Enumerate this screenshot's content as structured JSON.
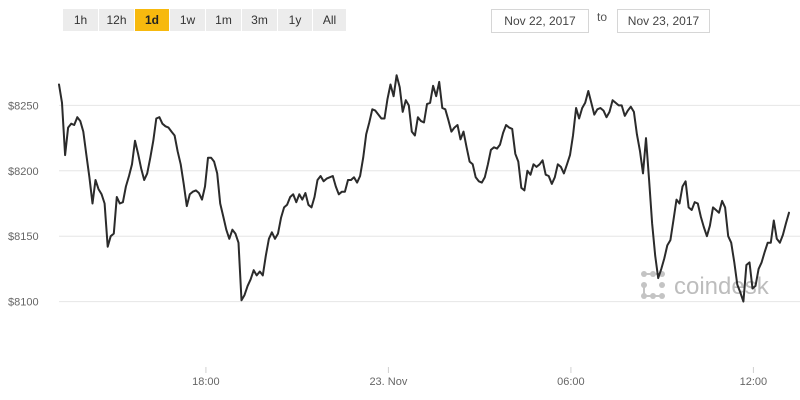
{
  "range_buttons": [
    {
      "label": "1h",
      "active": false
    },
    {
      "label": "12h",
      "active": false
    },
    {
      "label": "1d",
      "active": true
    },
    {
      "label": "1w",
      "active": false
    },
    {
      "label": "1m",
      "active": false
    },
    {
      "label": "3m",
      "active": false
    },
    {
      "label": "1y",
      "active": false
    },
    {
      "label": "All",
      "active": false
    }
  ],
  "date_range": {
    "from": "Nov 22, 2017",
    "separator": "to",
    "to": "Nov 23, 2017"
  },
  "watermark": {
    "text": "coindesk",
    "icon": "coindesk-logo-icon"
  },
  "colors": {
    "line": "#2b2b2b",
    "active_button": "#f7b90e",
    "grid": "#e6e6e6"
  },
  "chart_data": {
    "type": "line",
    "title": "",
    "xlabel": "",
    "ylabel": "",
    "x_unit": "hours since Nov 22, 2017 13:10",
    "xlim": [
      0,
      24
    ],
    "ylim": [
      8050,
      8300
    ],
    "y_ticks": [
      {
        "value": 8100,
        "label": "$8100"
      },
      {
        "value": 8150,
        "label": "$8150"
      },
      {
        "value": 8200,
        "label": "$8200"
      },
      {
        "value": 8250,
        "label": "$8250"
      }
    ],
    "x_ticks": [
      {
        "value": 4.83,
        "label": "18:00"
      },
      {
        "value": 10.83,
        "label": "23. Nov"
      },
      {
        "value": 16.83,
        "label": "06:00"
      },
      {
        "value": 22.83,
        "label": "12:00"
      }
    ],
    "grid": "horizontal",
    "legend": "none",
    "series": [
      {
        "values": [
          [
            0.0,
            8266
          ],
          [
            0.1,
            8252
          ],
          [
            0.2,
            8212
          ],
          [
            0.3,
            8233
          ],
          [
            0.4,
            8236
          ],
          [
            0.5,
            8235
          ],
          [
            0.6,
            8241
          ],
          [
            0.7,
            8238
          ],
          [
            0.8,
            8230
          ],
          [
            0.9,
            8212
          ],
          [
            1.0,
            8195
          ],
          [
            1.1,
            8175
          ],
          [
            1.2,
            8193
          ],
          [
            1.3,
            8186
          ],
          [
            1.4,
            8182
          ],
          [
            1.5,
            8175
          ],
          [
            1.6,
            8142
          ],
          [
            1.7,
            8150
          ],
          [
            1.8,
            8152
          ],
          [
            1.9,
            8180
          ],
          [
            2.0,
            8175
          ],
          [
            2.1,
            8176
          ],
          [
            2.2,
            8188
          ],
          [
            2.3,
            8196
          ],
          [
            2.4,
            8205
          ],
          [
            2.5,
            8223
          ],
          [
            2.6,
            8213
          ],
          [
            2.7,
            8202
          ],
          [
            2.8,
            8193
          ],
          [
            2.9,
            8198
          ],
          [
            3.0,
            8210
          ],
          [
            3.1,
            8223
          ],
          [
            3.2,
            8240
          ],
          [
            3.3,
            8241
          ],
          [
            3.4,
            8236
          ],
          [
            3.5,
            8234
          ],
          [
            3.6,
            8233
          ],
          [
            3.7,
            8230
          ],
          [
            3.8,
            8227
          ],
          [
            3.9,
            8215
          ],
          [
            4.0,
            8205
          ],
          [
            4.1,
            8190
          ],
          [
            4.2,
            8173
          ],
          [
            4.3,
            8182
          ],
          [
            4.4,
            8184
          ],
          [
            4.5,
            8185
          ],
          [
            4.6,
            8183
          ],
          [
            4.7,
            8178
          ],
          [
            4.8,
            8188
          ],
          [
            4.9,
            8210
          ],
          [
            5.0,
            8210
          ],
          [
            5.1,
            8207
          ],
          [
            5.2,
            8198
          ],
          [
            5.3,
            8175
          ],
          [
            5.4,
            8165
          ],
          [
            5.5,
            8155
          ],
          [
            5.6,
            8148
          ],
          [
            5.7,
            8155
          ],
          [
            5.8,
            8152
          ],
          [
            5.9,
            8145
          ],
          [
            6.0,
            8101
          ],
          [
            6.1,
            8105
          ],
          [
            6.2,
            8112
          ],
          [
            6.3,
            8117
          ],
          [
            6.4,
            8124
          ],
          [
            6.5,
            8120
          ],
          [
            6.6,
            8123
          ],
          [
            6.7,
            8120
          ],
          [
            6.8,
            8135
          ],
          [
            6.9,
            8148
          ],
          [
            7.0,
            8153
          ],
          [
            7.1,
            8148
          ],
          [
            7.2,
            8152
          ],
          [
            7.3,
            8164
          ],
          [
            7.4,
            8172
          ],
          [
            7.5,
            8174
          ],
          [
            7.6,
            8180
          ],
          [
            7.7,
            8182
          ],
          [
            7.8,
            8176
          ],
          [
            7.9,
            8182
          ],
          [
            8.0,
            8178
          ],
          [
            8.1,
            8183
          ],
          [
            8.2,
            8174
          ],
          [
            8.3,
            8172
          ],
          [
            8.4,
            8180
          ],
          [
            8.5,
            8193
          ],
          [
            8.6,
            8196
          ],
          [
            8.7,
            8192
          ],
          [
            8.8,
            8194
          ],
          [
            8.9,
            8195
          ],
          [
            9.0,
            8196
          ],
          [
            9.1,
            8188
          ],
          [
            9.2,
            8182
          ],
          [
            9.3,
            8184
          ],
          [
            9.4,
            8184
          ],
          [
            9.5,
            8193
          ],
          [
            9.6,
            8193
          ],
          [
            9.7,
            8195
          ],
          [
            9.8,
            8191
          ],
          [
            9.9,
            8196
          ],
          [
            10.0,
            8210
          ],
          [
            10.1,
            8228
          ],
          [
            10.2,
            8237
          ],
          [
            10.3,
            8247
          ],
          [
            10.4,
            8246
          ],
          [
            10.5,
            8243
          ],
          [
            10.6,
            8240
          ],
          [
            10.7,
            8240
          ],
          [
            10.8,
            8255
          ],
          [
            10.9,
            8266
          ],
          [
            11.0,
            8257
          ],
          [
            11.1,
            8273
          ],
          [
            11.2,
            8264
          ],
          [
            11.3,
            8245
          ],
          [
            11.4,
            8254
          ],
          [
            11.5,
            8250
          ],
          [
            11.6,
            8230
          ],
          [
            11.7,
            8227
          ],
          [
            11.8,
            8241
          ],
          [
            11.9,
            8238
          ],
          [
            12.0,
            8237
          ],
          [
            12.1,
            8251
          ],
          [
            12.2,
            8252
          ],
          [
            12.3,
            8265
          ],
          [
            12.4,
            8257
          ],
          [
            12.5,
            8268
          ],
          [
            12.6,
            8248
          ],
          [
            12.7,
            8247
          ],
          [
            12.8,
            8239
          ],
          [
            12.9,
            8230
          ],
          [
            13.0,
            8233
          ],
          [
            13.1,
            8235
          ],
          [
            13.2,
            8224
          ],
          [
            13.3,
            8230
          ],
          [
            13.4,
            8218
          ],
          [
            13.5,
            8207
          ],
          [
            13.6,
            8205
          ],
          [
            13.7,
            8195
          ],
          [
            13.8,
            8192
          ],
          [
            13.9,
            8191
          ],
          [
            14.0,
            8195
          ],
          [
            14.1,
            8205
          ],
          [
            14.2,
            8216
          ],
          [
            14.3,
            8218
          ],
          [
            14.4,
            8217
          ],
          [
            14.5,
            8220
          ],
          [
            14.6,
            8229
          ],
          [
            14.7,
            8235
          ],
          [
            14.8,
            8233
          ],
          [
            14.9,
            8232
          ],
          [
            15.0,
            8213
          ],
          [
            15.1,
            8207
          ],
          [
            15.2,
            8187
          ],
          [
            15.3,
            8185
          ],
          [
            15.4,
            8200
          ],
          [
            15.5,
            8197
          ],
          [
            15.6,
            8205
          ],
          [
            15.7,
            8203
          ],
          [
            15.8,
            8205
          ],
          [
            15.9,
            8208
          ],
          [
            16.0,
            8197
          ],
          [
            16.1,
            8196
          ],
          [
            16.2,
            8190
          ],
          [
            16.3,
            8195
          ],
          [
            16.4,
            8205
          ],
          [
            16.5,
            8203
          ],
          [
            16.6,
            8198
          ],
          [
            16.7,
            8205
          ],
          [
            16.8,
            8212
          ],
          [
            16.9,
            8227
          ],
          [
            17.0,
            8248
          ],
          [
            17.1,
            8240
          ],
          [
            17.2,
            8248
          ],
          [
            17.3,
            8252
          ],
          [
            17.4,
            8261
          ],
          [
            17.5,
            8252
          ],
          [
            17.6,
            8243
          ],
          [
            17.7,
            8247
          ],
          [
            17.8,
            8248
          ],
          [
            17.9,
            8246
          ],
          [
            18.0,
            8241
          ],
          [
            18.1,
            8245
          ],
          [
            18.2,
            8254
          ],
          [
            18.3,
            8252
          ],
          [
            18.4,
            8250
          ],
          [
            18.5,
            8250
          ],
          [
            18.6,
            8242
          ],
          [
            18.7,
            8246
          ],
          [
            18.8,
            8249
          ],
          [
            18.9,
            8245
          ],
          [
            19.0,
            8228
          ],
          [
            19.1,
            8215
          ],
          [
            19.2,
            8198
          ],
          [
            19.3,
            8225
          ],
          [
            19.4,
            8193
          ],
          [
            19.5,
            8160
          ],
          [
            19.6,
            8135
          ],
          [
            19.7,
            8118
          ],
          [
            19.8,
            8125
          ],
          [
            19.9,
            8133
          ],
          [
            20.0,
            8143
          ],
          [
            20.1,
            8147
          ],
          [
            20.2,
            8162
          ],
          [
            20.3,
            8178
          ],
          [
            20.4,
            8175
          ],
          [
            20.5,
            8188
          ],
          [
            20.6,
            8192
          ],
          [
            20.7,
            8172
          ],
          [
            20.8,
            8170
          ],
          [
            20.9,
            8176
          ],
          [
            21.0,
            8175
          ],
          [
            21.1,
            8165
          ],
          [
            21.2,
            8157
          ],
          [
            21.3,
            8150
          ],
          [
            21.4,
            8158
          ],
          [
            21.5,
            8172
          ],
          [
            21.6,
            8170
          ],
          [
            21.7,
            8168
          ],
          [
            21.8,
            8177
          ],
          [
            21.9,
            8172
          ],
          [
            22.0,
            8150
          ],
          [
            22.1,
            8145
          ],
          [
            22.2,
            8130
          ],
          [
            22.3,
            8113
          ],
          [
            22.4,
            8107
          ],
          [
            22.5,
            8100
          ],
          [
            22.6,
            8128
          ],
          [
            22.7,
            8130
          ],
          [
            22.8,
            8110
          ],
          [
            22.9,
            8112
          ],
          [
            23.0,
            8125
          ],
          [
            23.1,
            8130
          ],
          [
            23.2,
            8138
          ],
          [
            23.3,
            8145
          ],
          [
            23.4,
            8145
          ],
          [
            23.5,
            8162
          ],
          [
            23.6,
            8148
          ],
          [
            23.7,
            8145
          ],
          [
            23.8,
            8151
          ],
          [
            23.9,
            8160
          ],
          [
            24.0,
            8168
          ]
        ]
      }
    ]
  }
}
